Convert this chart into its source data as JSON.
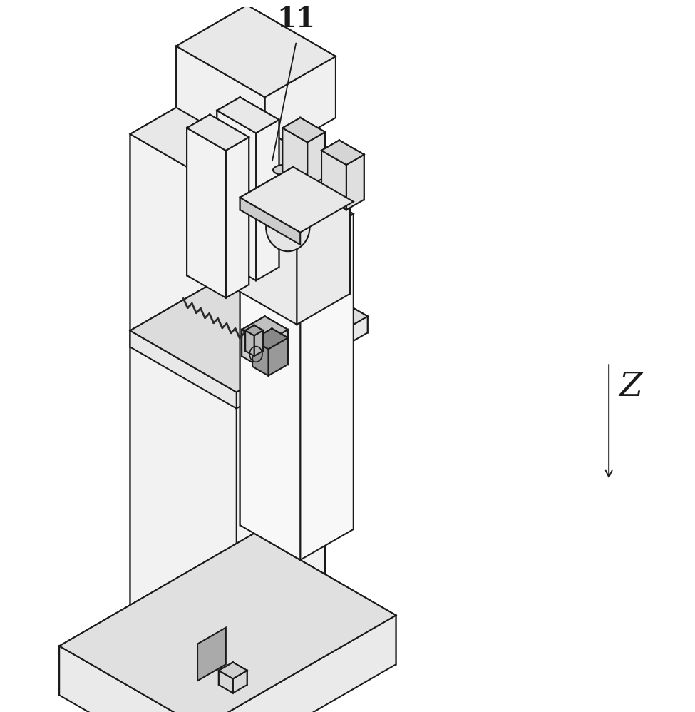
{
  "background_color": "#ffffff",
  "line_color": "#1a1a1a",
  "line_width": 1.5,
  "figsize": [
    9.75,
    9.98
  ],
  "dpi": 100,
  "label_11_text": "11",
  "z_label": "Z"
}
